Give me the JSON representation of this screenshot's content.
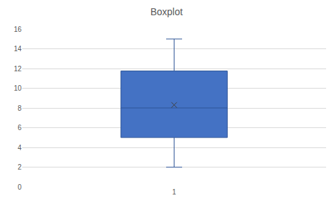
{
  "chart_data": {
    "type": "box",
    "title": "Boxplot",
    "categories": [
      "1"
    ],
    "min": [
      2
    ],
    "q1": [
      5
    ],
    "median": [
      8
    ],
    "q3": [
      11.75
    ],
    "max": [
      15
    ],
    "mean": [
      8.3
    ],
    "color": "#4472c4",
    "marker": "x",
    "ylim": [
      0,
      16
    ],
    "yticks": [
      0,
      2,
      4,
      6,
      8,
      10,
      12,
      14,
      16
    ],
    "grid": true
  }
}
